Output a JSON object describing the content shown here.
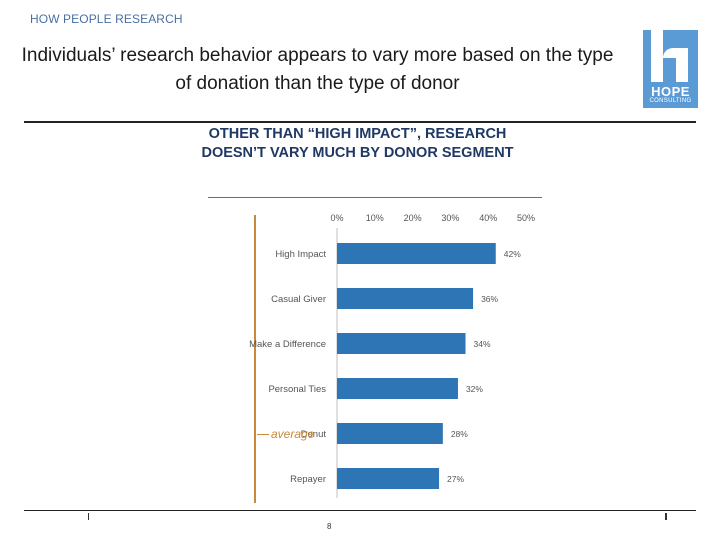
{
  "header": {
    "section_label": "HOW PEOPLE RESEARCH",
    "title": "Individuals’ research behavior appears to vary more based on the type of donation than the type of donor",
    "logo_name": "HOPE",
    "logo_sub": "CONSULTING"
  },
  "subtitle": "OTHER THAN “HIGH IMPACT”, RESEARCH DOESN’T VARY MUCH BY DONOR SEGMENT",
  "footer": {
    "page_number": "8"
  },
  "colors": {
    "bar": "#2e75b6",
    "average_line": "#c8893a",
    "accent": "#5b9bd5"
  },
  "chart_data": {
    "type": "bar",
    "orientation": "horizontal",
    "categories": [
      "High Impact",
      "Casual Giver",
      "Make a Difference",
      "Personal Ties",
      "Donut",
      "Repayer"
    ],
    "values": [
      42,
      36,
      34,
      32,
      28,
      27
    ],
    "data_labels": [
      "42%",
      "36%",
      "34%",
      "32%",
      "28%",
      "27%"
    ],
    "x_ticks": [
      "0%",
      "10%",
      "20%",
      "30%",
      "40%",
      "50%"
    ],
    "x_tick_values": [
      0,
      10,
      20,
      30,
      40,
      50
    ],
    "xlim": [
      0,
      50
    ],
    "grid": false,
    "axis_position": "top",
    "legend": {
      "label": "average"
    }
  }
}
